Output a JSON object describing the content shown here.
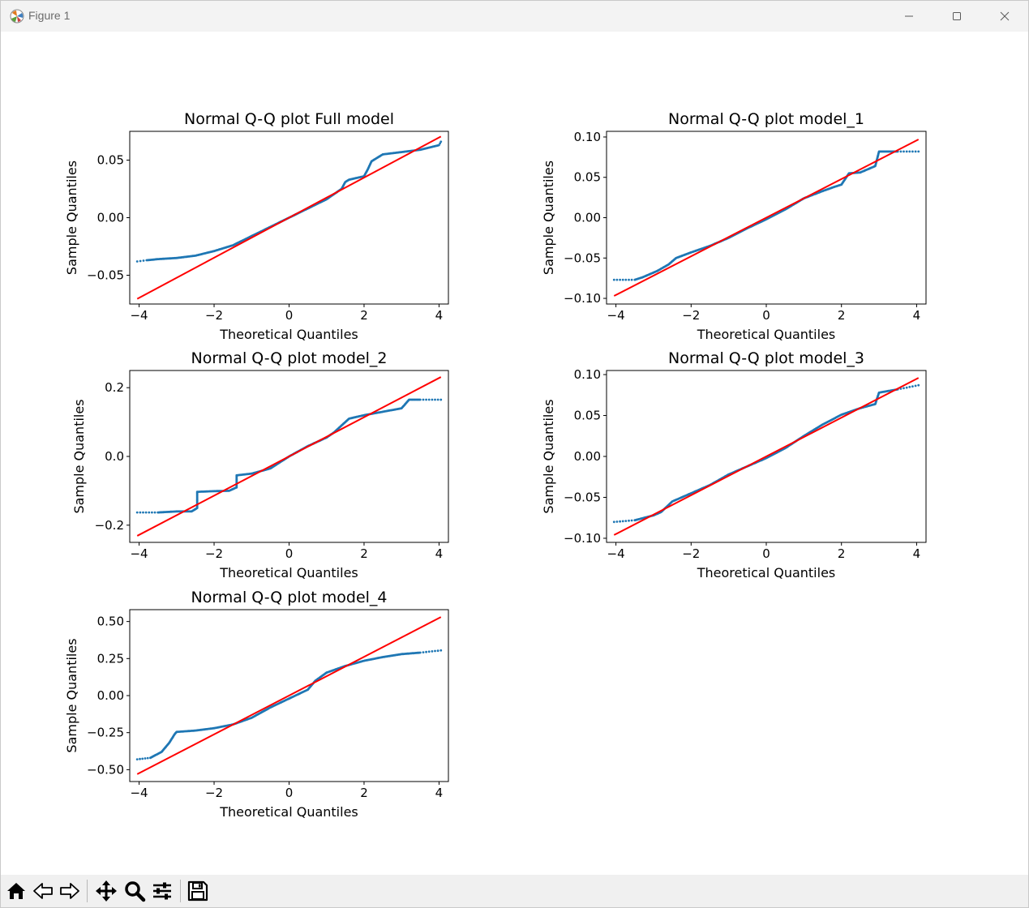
{
  "window": {
    "title": "Figure 1",
    "icons": {
      "app": "matplotlib-icon",
      "minimize": "minimize-icon",
      "maximize": "maximize-icon",
      "close": "close-icon"
    }
  },
  "colors": {
    "points": "#1f77b4",
    "line": "#ff0000",
    "axes": "#000000",
    "toolbar_bg": "#f0f0f0",
    "titlebar_bg": "#f3f3f3"
  },
  "chart_data": [
    {
      "type": "scatter",
      "title": "Normal Q-Q plot Full model",
      "xlabel": "Theoretical Quantiles",
      "ylabel": "Sample Quantiles",
      "xlim": [
        -4.25,
        4.25
      ],
      "ylim": [
        -0.075,
        0.075
      ],
      "xticks": [
        -4,
        -2,
        0,
        2,
        4
      ],
      "xtick_labels": [
        "−4",
        "−2",
        "0",
        "2",
        "4"
      ],
      "yticks": [
        -0.05,
        0.0,
        0.05
      ],
      "ytick_labels": [
        "−0.05",
        "0.00",
        "0.05"
      ],
      "line": [
        [
          -4.05,
          -0.0705
        ],
        [
          4.05,
          0.0705
        ]
      ],
      "x": [
        -4.05,
        -3.8,
        -3.5,
        -3.0,
        -2.5,
        -2.0,
        -1.5,
        -1.0,
        -0.5,
        0.0,
        0.5,
        1.0,
        1.4,
        1.5,
        1.6,
        2.0,
        2.1,
        2.2,
        2.5,
        3.0,
        3.5,
        4.0,
        4.05
      ],
      "y": [
        -0.038,
        -0.037,
        -0.036,
        -0.035,
        -0.033,
        -0.029,
        -0.024,
        -0.016,
        -0.008,
        0.0,
        0.008,
        0.016,
        0.025,
        0.031,
        0.033,
        0.036,
        0.042,
        0.049,
        0.055,
        0.057,
        0.059,
        0.063,
        0.066
      ]
    },
    {
      "type": "scatter",
      "title": "Normal Q-Q plot model_1",
      "xlabel": "Theoretical Quantiles",
      "ylabel": "Sample Quantiles",
      "xlim": [
        -4.25,
        4.25
      ],
      "ylim": [
        -0.107,
        0.107
      ],
      "xticks": [
        -4,
        -2,
        0,
        2,
        4
      ],
      "xtick_labels": [
        "−4",
        "−2",
        "0",
        "2",
        "4"
      ],
      "yticks": [
        -0.1,
        -0.05,
        0.0,
        0.05,
        0.1
      ],
      "ytick_labels": [
        "−0.10",
        "−0.05",
        "0.00",
        "0.05",
        "0.10"
      ],
      "line": [
        [
          -4.05,
          -0.097
        ],
        [
          4.05,
          0.097
        ]
      ],
      "x": [
        -4.05,
        -3.5,
        -3.3,
        -3.1,
        -2.9,
        -2.6,
        -2.4,
        -2.0,
        -1.5,
        -1.0,
        -0.5,
        0.0,
        0.5,
        1.0,
        1.5,
        1.8,
        2.0,
        2.2,
        2.5,
        2.9,
        3.0,
        3.5,
        4.05
      ],
      "y": [
        -0.077,
        -0.077,
        -0.074,
        -0.07,
        -0.066,
        -0.058,
        -0.05,
        -0.043,
        -0.035,
        -0.025,
        -0.013,
        -0.002,
        0.01,
        0.024,
        0.033,
        0.038,
        0.041,
        0.055,
        0.056,
        0.064,
        0.082,
        0.082,
        0.082
      ]
    },
    {
      "type": "scatter",
      "title": "Normal Q-Q plot model_2",
      "xlabel": "Theoretical Quantiles",
      "ylabel": "Sample Quantiles",
      "xlim": [
        -4.25,
        4.25
      ],
      "ylim": [
        -0.25,
        0.25
      ],
      "xticks": [
        -4,
        -2,
        0,
        2,
        4
      ],
      "xtick_labels": [
        "−4",
        "−2",
        "0",
        "2",
        "4"
      ],
      "yticks": [
        -0.2,
        0.0,
        0.2
      ],
      "ytick_labels": [
        "−0.2",
        "0.0",
        "0.2"
      ],
      "line": [
        [
          -4.05,
          -0.231
        ],
        [
          4.05,
          0.231
        ]
      ],
      "x": [
        -4.05,
        -3.5,
        -3.0,
        -2.6,
        -2.45,
        -2.45,
        -2.0,
        -1.6,
        -1.4,
        -1.4,
        -1.0,
        -0.5,
        0.0,
        0.5,
        1.0,
        1.2,
        1.4,
        1.5,
        1.6,
        2.0,
        2.5,
        3.0,
        3.2,
        3.5,
        4.05
      ],
      "y": [
        -0.163,
        -0.163,
        -0.16,
        -0.16,
        -0.15,
        -0.103,
        -0.101,
        -0.1,
        -0.09,
        -0.055,
        -0.05,
        -0.035,
        0.0,
        0.03,
        0.055,
        0.07,
        0.09,
        0.1,
        0.11,
        0.12,
        0.13,
        0.14,
        0.165,
        0.165,
        0.165
      ]
    },
    {
      "type": "scatter",
      "title": "Normal Q-Q plot model_3",
      "xlabel": "Theoretical Quantiles",
      "ylabel": "Sample Quantiles",
      "xlim": [
        -4.25,
        4.25
      ],
      "ylim": [
        -0.105,
        0.105
      ],
      "xticks": [
        -4,
        -2,
        0,
        2,
        4
      ],
      "xtick_labels": [
        "−4",
        "−2",
        "0",
        "2",
        "4"
      ],
      "yticks": [
        -0.1,
        -0.05,
        0.0,
        0.05,
        0.1
      ],
      "ytick_labels": [
        "−0.10",
        "−0.05",
        "0.00",
        "0.05",
        "0.10"
      ],
      "line": [
        [
          -4.05,
          -0.096
        ],
        [
          4.05,
          0.096
        ]
      ],
      "x": [
        -4.05,
        -3.5,
        -3.0,
        -2.8,
        -2.5,
        -2.0,
        -1.5,
        -1.0,
        -0.5,
        0.0,
        0.5,
        1.0,
        1.5,
        2.0,
        2.5,
        2.9,
        3.0,
        3.5,
        4.05
      ],
      "y": [
        -0.08,
        -0.078,
        -0.072,
        -0.068,
        -0.055,
        -0.045,
        -0.035,
        -0.022,
        -0.012,
        -0.002,
        0.01,
        0.025,
        0.039,
        0.051,
        0.059,
        0.064,
        0.078,
        0.082,
        0.087
      ]
    },
    {
      "type": "scatter",
      "title": "Normal Q-Q plot model_4",
      "xlabel": "Theoretical Quantiles",
      "ylabel": "Sample Quantiles",
      "xlim": [
        -4.25,
        4.25
      ],
      "ylim": [
        -0.58,
        0.58
      ],
      "xticks": [
        -4,
        -2,
        0,
        2,
        4
      ],
      "xtick_labels": [
        "−4",
        "−2",
        "0",
        "2",
        "4"
      ],
      "yticks": [
        -0.5,
        -0.25,
        0.0,
        0.25,
        0.5
      ],
      "ytick_labels": [
        "−0.50",
        "−0.25",
        "0.00",
        "0.25",
        "0.50"
      ],
      "line": [
        [
          -4.05,
          -0.53
        ],
        [
          4.05,
          0.53
        ]
      ],
      "x": [
        -4.05,
        -3.7,
        -3.4,
        -3.2,
        -3.05,
        -3.0,
        -2.5,
        -2.0,
        -1.5,
        -1.0,
        -0.5,
        0.0,
        0.5,
        0.7,
        1.0,
        1.5,
        2.0,
        2.5,
        3.0,
        3.5,
        4.05
      ],
      "y": [
        -0.43,
        -0.42,
        -0.38,
        -0.32,
        -0.26,
        -0.245,
        -0.236,
        -0.22,
        -0.195,
        -0.15,
        -0.08,
        -0.02,
        0.04,
        0.1,
        0.155,
        0.2,
        0.235,
        0.26,
        0.28,
        0.29,
        0.305
      ]
    }
  ]
}
